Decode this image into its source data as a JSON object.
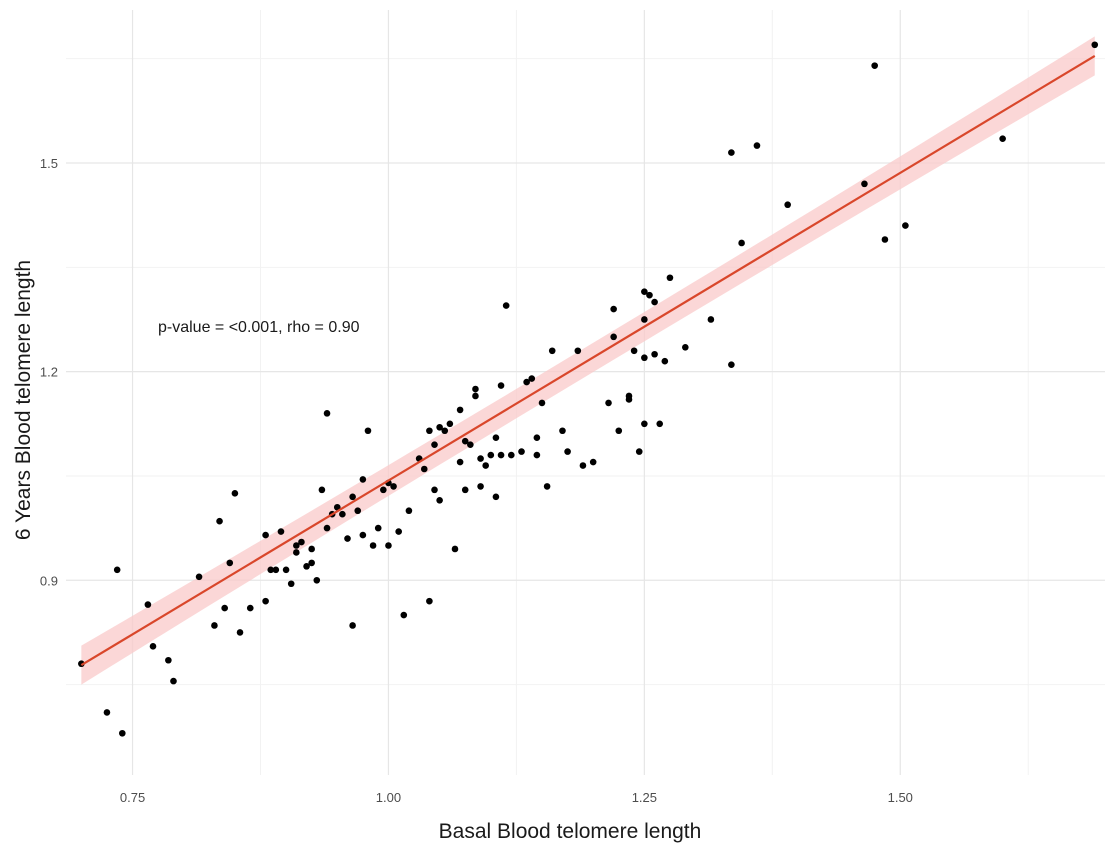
{
  "chart_data": {
    "type": "scatter",
    "title": "",
    "xlabel": "Basal Blood telomere length",
    "ylabel": "6 Years Blood telomere length",
    "xlim": [
      0.685,
      1.7
    ],
    "ylim": [
      0.62,
      1.72
    ],
    "x_ticks": [
      0.75,
      1.0,
      1.25,
      1.5
    ],
    "x_tick_labels": [
      "0.75",
      "1.00",
      "1.25",
      "1.50"
    ],
    "y_ticks": [
      0.9,
      1.2,
      1.5
    ],
    "y_tick_labels": [
      "0.9",
      "1.2",
      "1.5"
    ],
    "grid": true,
    "annotation": "p-value = <0.001, rho = 0.90",
    "regression": {
      "x": [
        0.7,
        1.69
      ],
      "y": [
        0.778,
        1.654
      ],
      "line_color": "#d9472b",
      "band_color": "#f9caca",
      "band_halfwidth": [
        0.028,
        0.014,
        0.028
      ]
    },
    "point_color": "#000000",
    "points": [
      [
        0.7,
        0.78
      ],
      [
        0.725,
        0.71
      ],
      [
        0.735,
        0.915
      ],
      [
        0.74,
        0.68
      ],
      [
        0.765,
        0.865
      ],
      [
        0.77,
        0.805
      ],
      [
        0.785,
        0.785
      ],
      [
        0.79,
        0.755
      ],
      [
        0.815,
        0.905
      ],
      [
        0.83,
        0.835
      ],
      [
        0.835,
        0.985
      ],
      [
        0.84,
        0.86
      ],
      [
        0.845,
        0.925
      ],
      [
        0.85,
        1.025
      ],
      [
        0.855,
        0.825
      ],
      [
        0.865,
        0.86
      ],
      [
        0.88,
        0.87
      ],
      [
        0.88,
        0.965
      ],
      [
        0.885,
        0.915
      ],
      [
        0.89,
        0.915
      ],
      [
        0.895,
        0.97
      ],
      [
        0.9,
        0.915
      ],
      [
        0.905,
        0.895
      ],
      [
        0.91,
        0.95
      ],
      [
        0.91,
        0.94
      ],
      [
        0.915,
        0.955
      ],
      [
        0.92,
        0.92
      ],
      [
        0.925,
        0.945
      ],
      [
        0.925,
        0.925
      ],
      [
        0.93,
        0.9
      ],
      [
        0.935,
        1.03
      ],
      [
        0.94,
        1.14
      ],
      [
        0.94,
        0.975
      ],
      [
        0.945,
        0.995
      ],
      [
        0.95,
        1.005
      ],
      [
        0.955,
        0.995
      ],
      [
        0.96,
        0.96
      ],
      [
        0.965,
        0.835
      ],
      [
        0.965,
        1.02
      ],
      [
        0.97,
        1.0
      ],
      [
        0.975,
        1.045
      ],
      [
        0.975,
        0.965
      ],
      [
        0.98,
        1.115
      ],
      [
        0.985,
        0.95
      ],
      [
        0.99,
        0.975
      ],
      [
        0.995,
        1.03
      ],
      [
        1.0,
        1.04
      ],
      [
        1.0,
        0.95
      ],
      [
        1.005,
        1.035
      ],
      [
        1.01,
        0.97
      ],
      [
        1.015,
        0.85
      ],
      [
        1.02,
        1.0
      ],
      [
        1.03,
        1.075
      ],
      [
        1.035,
        1.06
      ],
      [
        1.04,
        0.87
      ],
      [
        1.04,
        1.115
      ],
      [
        1.045,
        1.095
      ],
      [
        1.045,
        1.03
      ],
      [
        1.05,
        1.12
      ],
      [
        1.05,
        1.015
      ],
      [
        1.055,
        1.115
      ],
      [
        1.06,
        1.125
      ],
      [
        1.065,
        0.945
      ],
      [
        1.07,
        1.07
      ],
      [
        1.07,
        1.145
      ],
      [
        1.075,
        1.03
      ],
      [
        1.075,
        1.1
      ],
      [
        1.08,
        1.095
      ],
      [
        1.085,
        1.165
      ],
      [
        1.085,
        1.175
      ],
      [
        1.09,
        1.075
      ],
      [
        1.09,
        1.035
      ],
      [
        1.095,
        1.065
      ],
      [
        1.1,
        1.08
      ],
      [
        1.105,
        1.02
      ],
      [
        1.105,
        1.105
      ],
      [
        1.11,
        1.08
      ],
      [
        1.11,
        1.18
      ],
      [
        1.115,
        1.295
      ],
      [
        1.12,
        1.08
      ],
      [
        1.13,
        1.085
      ],
      [
        1.135,
        1.185
      ],
      [
        1.14,
        1.19
      ],
      [
        1.145,
        1.105
      ],
      [
        1.145,
        1.08
      ],
      [
        1.15,
        1.155
      ],
      [
        1.155,
        1.035
      ],
      [
        1.16,
        1.23
      ],
      [
        1.17,
        1.115
      ],
      [
        1.175,
        1.085
      ],
      [
        1.185,
        1.23
      ],
      [
        1.19,
        1.065
      ],
      [
        1.2,
        1.07
      ],
      [
        1.215,
        1.155
      ],
      [
        1.22,
        1.25
      ],
      [
        1.22,
        1.29
      ],
      [
        1.225,
        1.115
      ],
      [
        1.235,
        1.165
      ],
      [
        1.235,
        1.16
      ],
      [
        1.24,
        1.23
      ],
      [
        1.245,
        1.085
      ],
      [
        1.25,
        1.275
      ],
      [
        1.25,
        1.315
      ],
      [
        1.25,
        1.22
      ],
      [
        1.25,
        1.125
      ],
      [
        1.255,
        1.31
      ],
      [
        1.26,
        1.225
      ],
      [
        1.26,
        1.3
      ],
      [
        1.265,
        1.125
      ],
      [
        1.27,
        1.215
      ],
      [
        1.275,
        1.335
      ],
      [
        1.29,
        1.235
      ],
      [
        1.315,
        1.275
      ],
      [
        1.335,
        1.21
      ],
      [
        1.335,
        1.515
      ],
      [
        1.345,
        1.385
      ],
      [
        1.36,
        1.525
      ],
      [
        1.39,
        1.44
      ],
      [
        1.465,
        1.47
      ],
      [
        1.475,
        1.64
      ],
      [
        1.485,
        1.39
      ],
      [
        1.505,
        1.41
      ],
      [
        1.6,
        1.535
      ],
      [
        1.69,
        1.67
      ]
    ]
  }
}
